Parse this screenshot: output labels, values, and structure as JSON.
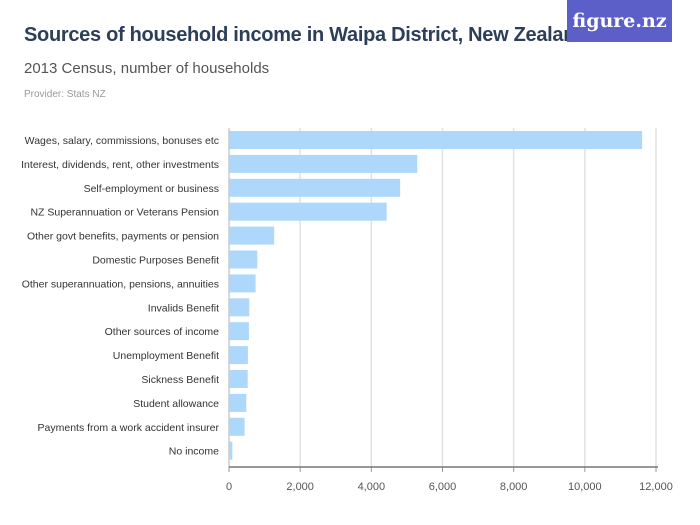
{
  "header": {
    "title": "Sources of household income in Waipa District, New Zealand",
    "subtitle": "2013 Census, number of households",
    "provider": "Provider: Stats NZ",
    "logo": "figure.nz"
  },
  "chart_data": {
    "type": "bar",
    "orientation": "horizontal",
    "categories": [
      "Wages, salary, commissions, bonuses etc",
      "Interest, dividends, rent, other investments",
      "Self-employment or business",
      "NZ Superannuation or Veterans Pension",
      "Other govt benefits, payments or pension",
      "Domestic Purposes Benefit",
      "Other superannuation, pensions, annuities",
      "Invalids Benefit",
      "Other sources of income",
      "Unemployment Benefit",
      "Sickness Benefit",
      "Student allowance",
      "Payments from a work accident insurer",
      "No income"
    ],
    "values": [
      11610,
      5290,
      4810,
      4430,
      1270,
      795,
      747,
      570,
      560,
      531,
      525,
      486,
      438,
      93
    ],
    "xlim": [
      0,
      12000
    ],
    "ticks": [
      0,
      2000,
      4000,
      6000,
      8000,
      10000,
      12000
    ],
    "tick_labels": [
      "0",
      "2,000",
      "4,000",
      "6,000",
      "8,000",
      "10,000",
      "12,000"
    ],
    "grid": true,
    "bar_color": "#add8fb"
  }
}
